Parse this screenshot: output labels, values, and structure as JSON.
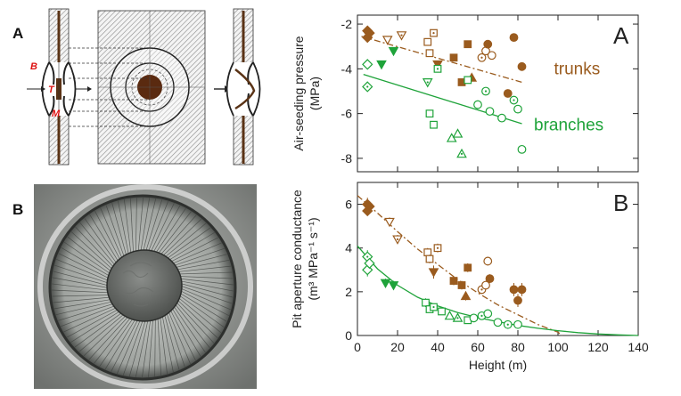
{
  "figure": {
    "left_letters": [
      "A",
      "B"
    ],
    "schematic_labels": {
      "border": "B",
      "torus": "T",
      "margo": "M"
    }
  },
  "colors": {
    "trunks": "#9a5b1e",
    "branches": "#1fa33a",
    "axis": "#222222"
  },
  "chart_data": [
    {
      "panel": "A",
      "type": "scatter",
      "ylabel_lines": [
        "Air-seeding pressure",
        "(MPa)"
      ],
      "ylim": [
        -8.6,
        -1.6
      ],
      "yticks": [
        "-2",
        "-4",
        "-6",
        "-8"
      ],
      "ytick_values": [
        -2,
        -4,
        -6,
        -8
      ],
      "xlim": [
        0,
        140
      ],
      "grid": false,
      "series": [
        {
          "name": "trunks",
          "fit": {
            "from": [
              2,
              -2.55
            ],
            "to": [
              82,
              -4.6
            ]
          },
          "points": [
            {
              "x": 5,
              "y": -2.3,
              "m": "diamond",
              "f": true
            },
            {
              "x": 5,
              "y": -2.6,
              "m": "diamond",
              "f": true
            },
            {
              "x": 6,
              "y": -2.4,
              "m": "diamond",
              "f": true
            },
            {
              "x": 15,
              "y": -2.7,
              "m": "tri-down",
              "f": false
            },
            {
              "x": 22,
              "y": -2.5,
              "m": "tri-down",
              "f": false
            },
            {
              "x": 35,
              "y": -2.8,
              "m": "square",
              "f": false
            },
            {
              "x": 36,
              "y": -3.3,
              "m": "square",
              "f": false
            },
            {
              "x": 38,
              "y": -2.4,
              "m": "square",
              "f": false
            },
            {
              "x": 40,
              "y": -3.8,
              "m": "tri-down",
              "f": true
            },
            {
              "x": 48,
              "y": -3.5,
              "m": "square",
              "f": true
            },
            {
              "x": 52,
              "y": -4.6,
              "m": "square",
              "f": true
            },
            {
              "x": 55,
              "y": -2.9,
              "m": "square",
              "f": true
            },
            {
              "x": 57,
              "y": -4.4,
              "m": "tri-up",
              "f": true
            },
            {
              "x": 62,
              "y": -3.5,
              "m": "circle",
              "f": false
            },
            {
              "x": 64,
              "y": -3.2,
              "m": "circle",
              "f": false
            },
            {
              "x": 67,
              "y": -3.4,
              "m": "circle",
              "f": false
            },
            {
              "x": 65,
              "y": -2.9,
              "m": "circle",
              "f": true
            },
            {
              "x": 75,
              "y": -5.1,
              "m": "circle",
              "f": true
            },
            {
              "x": 78,
              "y": -2.6,
              "m": "circle",
              "f": true
            },
            {
              "x": 82,
              "y": -3.9,
              "m": "circle",
              "f": true
            }
          ]
        },
        {
          "name": "branches",
          "fit": {
            "from": [
              3,
              -4.25
            ],
            "to": [
              82,
              -6.45
            ]
          },
          "points": [
            {
              "x": 5,
              "y": -3.8,
              "m": "diamond",
              "f": false
            },
            {
              "x": 5,
              "y": -4.8,
              "m": "diamond",
              "f": false
            },
            {
              "x": 12,
              "y": -3.8,
              "m": "tri-down",
              "f": true
            },
            {
              "x": 18,
              "y": -3.2,
              "m": "tri-down",
              "f": true
            },
            {
              "x": 35,
              "y": -4.6,
              "m": "tri-down",
              "f": false
            },
            {
              "x": 36,
              "y": -6.0,
              "m": "square",
              "f": false
            },
            {
              "x": 38,
              "y": -6.5,
              "m": "square",
              "f": false
            },
            {
              "x": 40,
              "y": -4.0,
              "m": "square",
              "f": false
            },
            {
              "x": 47,
              "y": -7.1,
              "m": "tri-up",
              "f": false
            },
            {
              "x": 50,
              "y": -6.9,
              "m": "tri-up",
              "f": false
            },
            {
              "x": 52,
              "y": -7.8,
              "m": "tri-up",
              "f": false
            },
            {
              "x": 55,
              "y": -4.5,
              "m": "square",
              "f": false
            },
            {
              "x": 60,
              "y": -5.6,
              "m": "circle",
              "f": false
            },
            {
              "x": 64,
              "y": -5.0,
              "m": "circle",
              "f": false
            },
            {
              "x": 66,
              "y": -5.9,
              "m": "circle",
              "f": false
            },
            {
              "x": 72,
              "y": -6.2,
              "m": "circle",
              "f": false
            },
            {
              "x": 78,
              "y": -5.4,
              "m": "circle",
              "f": false
            },
            {
              "x": 80,
              "y": -5.8,
              "m": "circle",
              "f": false
            },
            {
              "x": 82,
              "y": -7.6,
              "m": "circle",
              "f": false
            }
          ]
        }
      ]
    },
    {
      "panel": "B",
      "type": "scatter",
      "ylabel_lines": [
        "Pit aperture conductance",
        "(m³ MPa⁻¹ s⁻¹)"
      ],
      "ylim": [
        0,
        7
      ],
      "yticks": [
        "0",
        "2",
        "4",
        "6"
      ],
      "ytick_values": [
        0,
        2,
        4,
        6
      ],
      "xlim": [
        0,
        140
      ],
      "xticks": [
        "0",
        "20",
        "40",
        "60",
        "80",
        "100",
        "120",
        "140"
      ],
      "xtick_values": [
        0,
        20,
        40,
        60,
        80,
        100,
        120,
        140
      ],
      "xlabel": "Height (m)",
      "grid": false,
      "series": [
        {
          "name": "trunks",
          "fit_curve": {
            "x": [
              0,
              10,
              20,
              30,
              40,
              50,
              60,
              70,
              80,
              90,
              100,
              102
            ],
            "y": [
              6.4,
              5.6,
              4.75,
              3.95,
              3.25,
              2.55,
              1.95,
              1.4,
              0.95,
              0.5,
              0.15,
              0.0
            ]
          },
          "points": [
            {
              "x": 5,
              "y": 6.0,
              "e": 0.3,
              "m": "diamond",
              "f": true
            },
            {
              "x": 5,
              "y": 5.7,
              "e": 0.2,
              "m": "diamond",
              "f": true
            },
            {
              "x": 6,
              "y": 5.9,
              "e": 0.2,
              "m": "diamond",
              "f": true
            },
            {
              "x": 16,
              "y": 5.2,
              "e": 0.2,
              "m": "tri-down",
              "f": false
            },
            {
              "x": 20,
              "y": 4.4,
              "e": 0.2,
              "m": "tri-down",
              "f": false
            },
            {
              "x": 35,
              "y": 3.8,
              "e": 0.2,
              "m": "square",
              "f": false
            },
            {
              "x": 36,
              "y": 3.5,
              "e": 0.2,
              "m": "square",
              "f": false
            },
            {
              "x": 40,
              "y": 4.0,
              "e": 0.2,
              "m": "square",
              "f": false
            },
            {
              "x": 38,
              "y": 2.9,
              "e": 0.3,
              "m": "tri-down",
              "f": true
            },
            {
              "x": 48,
              "y": 2.5,
              "e": 0.2,
              "m": "square",
              "f": true
            },
            {
              "x": 52,
              "y": 2.3,
              "e": 0.2,
              "m": "square",
              "f": true
            },
            {
              "x": 55,
              "y": 3.1,
              "e": 0.2,
              "m": "square",
              "f": true
            },
            {
              "x": 54,
              "y": 1.8,
              "e": 0.2,
              "m": "tri-up",
              "f": true
            },
            {
              "x": 62,
              "y": 2.1,
              "e": 0.2,
              "m": "circle",
              "f": false
            },
            {
              "x": 64,
              "y": 2.3,
              "e": 0.2,
              "m": "circle",
              "f": false
            },
            {
              "x": 65,
              "y": 3.4,
              "e": 0.2,
              "m": "circle",
              "f": false
            },
            {
              "x": 66,
              "y": 2.6,
              "e": 0.2,
              "m": "circle",
              "f": true
            },
            {
              "x": 78,
              "y": 2.1,
              "e": 0.3,
              "m": "circle",
              "f": true
            },
            {
              "x": 80,
              "y": 1.6,
              "e": 0.3,
              "m": "circle",
              "f": true
            },
            {
              "x": 82,
              "y": 2.1,
              "e": 0.3,
              "m": "circle",
              "f": true
            }
          ]
        },
        {
          "name": "branches",
          "fit_curve": {
            "x": [
              0,
              10,
              20,
              30,
              40,
              50,
              60,
              70,
              80,
              90,
              100,
              110,
              120,
              130,
              140
            ],
            "y": [
              4.1,
              3.05,
              2.3,
              1.75,
              1.35,
              1.05,
              0.82,
              0.63,
              0.46,
              0.33,
              0.22,
              0.13,
              0.07,
              0.03,
              0.0
            ]
          },
          "points": [
            {
              "x": 5,
              "y": 3.0,
              "e": 0.3,
              "m": "diamond",
              "f": false
            },
            {
              "x": 5,
              "y": 3.6,
              "e": 0.3,
              "m": "diamond",
              "f": false
            },
            {
              "x": 6,
              "y": 3.3,
              "e": 0.2,
              "m": "diamond",
              "f": false
            },
            {
              "x": 14,
              "y": 2.4,
              "e": 0.2,
              "m": "tri-down",
              "f": true
            },
            {
              "x": 18,
              "y": 2.3,
              "e": 0.2,
              "m": "tri-down",
              "f": true
            },
            {
              "x": 34,
              "y": 1.5,
              "e": 0.2,
              "m": "square",
              "f": false
            },
            {
              "x": 36,
              "y": 1.2,
              "e": 0.1,
              "m": "square",
              "f": false
            },
            {
              "x": 38,
              "y": 1.3,
              "e": 0.1,
              "m": "square",
              "f": false
            },
            {
              "x": 42,
              "y": 1.1,
              "e": 0.1,
              "m": "square",
              "f": false
            },
            {
              "x": 46,
              "y": 0.9,
              "e": 0.1,
              "m": "tri-up",
              "f": false
            },
            {
              "x": 50,
              "y": 0.8,
              "e": 0.1,
              "m": "tri-up",
              "f": false
            },
            {
              "x": 55,
              "y": 0.7,
              "e": 0.1,
              "m": "square",
              "f": false
            },
            {
              "x": 58,
              "y": 0.8,
              "e": 0.1,
              "m": "circle",
              "f": false
            },
            {
              "x": 62,
              "y": 0.9,
              "e": 0.1,
              "m": "circle",
              "f": false
            },
            {
              "x": 65,
              "y": 1.0,
              "e": 0.1,
              "m": "circle",
              "f": false
            },
            {
              "x": 70,
              "y": 0.6,
              "e": 0.1,
              "m": "circle",
              "f": false
            },
            {
              "x": 75,
              "y": 0.5,
              "e": 0.1,
              "m": "circle",
              "f": false
            },
            {
              "x": 80,
              "y": 0.5,
              "e": 0.1,
              "m": "circle",
              "f": false
            }
          ]
        }
      ]
    }
  ]
}
